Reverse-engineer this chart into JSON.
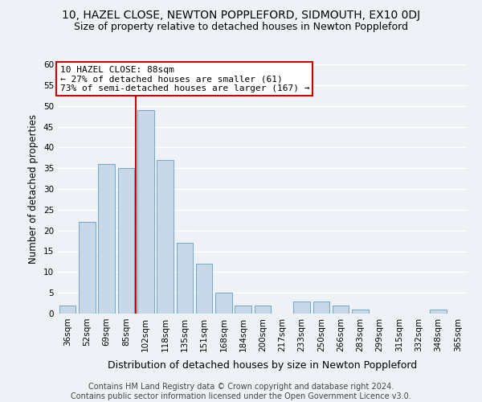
{
  "title": "10, HAZEL CLOSE, NEWTON POPPLEFORD, SIDMOUTH, EX10 0DJ",
  "subtitle": "Size of property relative to detached houses in Newton Poppleford",
  "xlabel": "Distribution of detached houses by size in Newton Poppleford",
  "ylabel": "Number of detached properties",
  "bar_color": "#c8d8e8",
  "bar_edge_color": "#7aacc8",
  "vline_color": "#cc0000",
  "categories": [
    "36sqm",
    "52sqm",
    "69sqm",
    "85sqm",
    "102sqm",
    "118sqm",
    "135sqm",
    "151sqm",
    "168sqm",
    "184sqm",
    "200sqm",
    "217sqm",
    "233sqm",
    "250sqm",
    "266sqm",
    "283sqm",
    "299sqm",
    "315sqm",
    "332sqm",
    "348sqm",
    "365sqm"
  ],
  "values": [
    2,
    22,
    36,
    35,
    49,
    37,
    17,
    12,
    5,
    2,
    2,
    0,
    3,
    3,
    2,
    1,
    0,
    0,
    0,
    1,
    0
  ],
  "vline_index": 3.5,
  "ylim": [
    0,
    60
  ],
  "yticks": [
    0,
    5,
    10,
    15,
    20,
    25,
    30,
    35,
    40,
    45,
    50,
    55,
    60
  ],
  "annotation_title": "10 HAZEL CLOSE: 88sqm",
  "annotation_line1": "← 27% of detached houses are smaller (61)",
  "annotation_line2": "73% of semi-detached houses are larger (167) →",
  "annotation_box_color": "#ffffff",
  "annotation_box_edge": "#cc0000",
  "footer_line1": "Contains HM Land Registry data © Crown copyright and database right 2024.",
  "footer_line2": "Contains public sector information licensed under the Open Government Licence v3.0.",
  "background_color": "#eef2f7",
  "grid_color": "#ffffff",
  "title_fontsize": 10,
  "subtitle_fontsize": 9,
  "xlabel_fontsize": 9,
  "ylabel_fontsize": 8.5,
  "tick_fontsize": 7.5,
  "footer_fontsize": 7,
  "ann_fontsize": 8
}
